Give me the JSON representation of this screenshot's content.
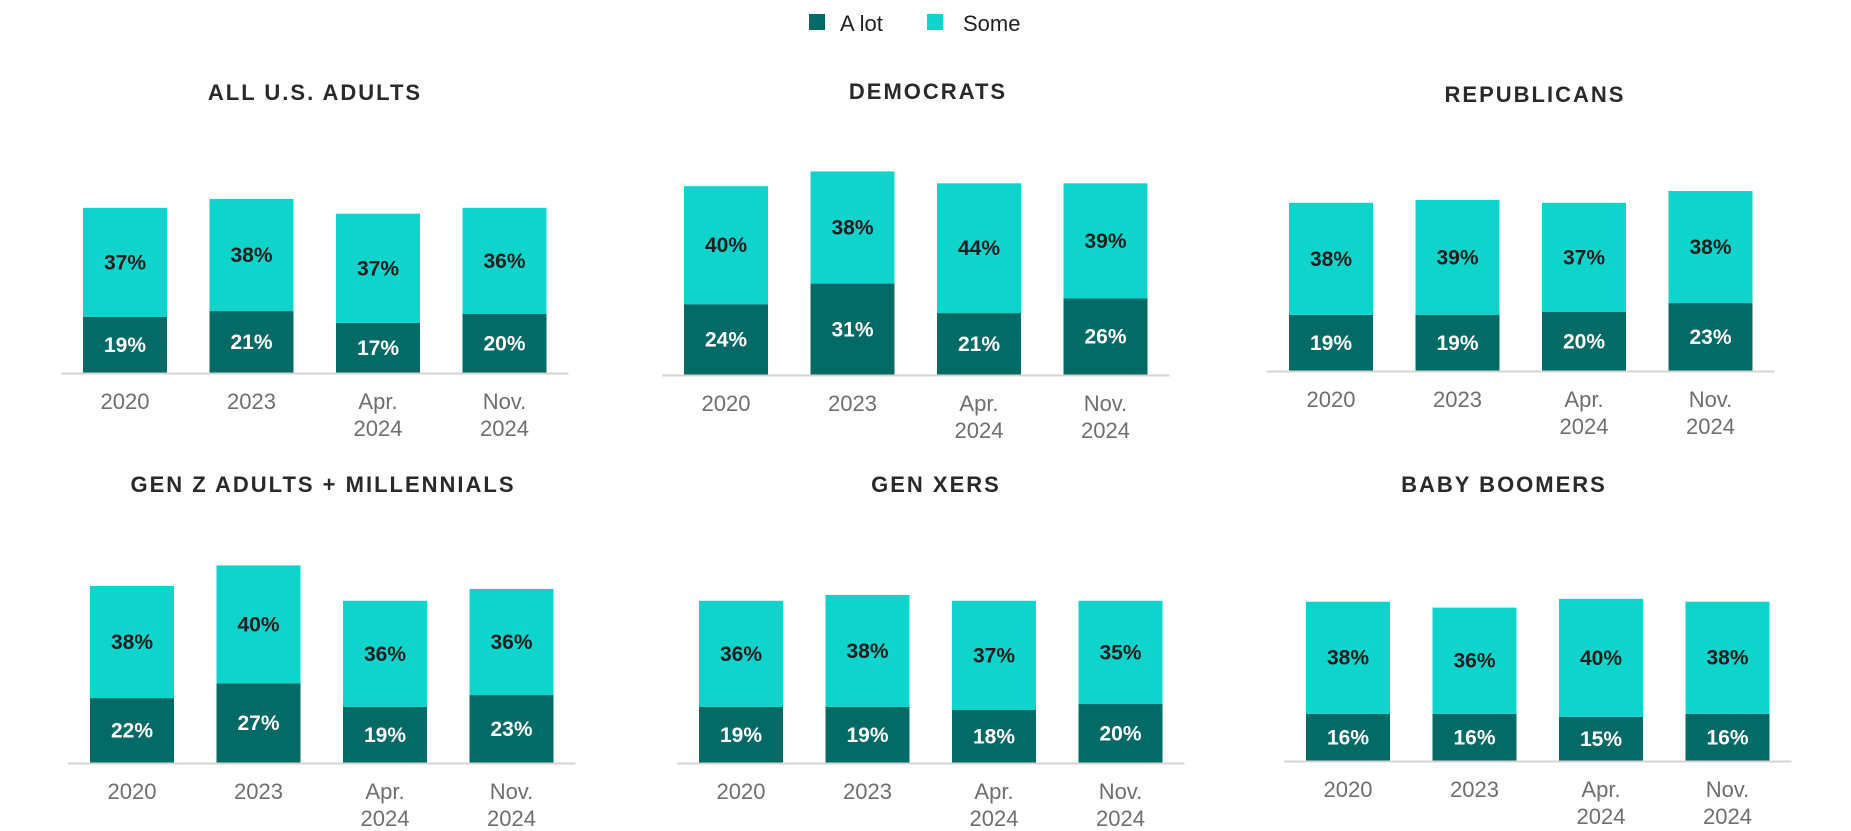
{
  "legend": [
    {
      "label": "A lot",
      "color": "#046A66"
    },
    {
      "label": "Some",
      "color": "#0FD4CC"
    }
  ],
  "chart_data": [
    {
      "type": "bar",
      "stacked": true,
      "title": "ALL U.S. ADULTS",
      "categories": [
        "2020",
        "2023",
        "Apr. 2024",
        "Nov. 2024"
      ],
      "series": [
        {
          "name": "A lot",
          "values": [
            19,
            21,
            17,
            20
          ],
          "labels": [
            "19%",
            "21%",
            "17%",
            "20%"
          ]
        },
        {
          "name": "Some",
          "values": [
            37,
            38,
            37,
            36
          ],
          "labels": [
            "37%",
            "38%",
            "37%",
            "36%"
          ]
        }
      ]
    },
    {
      "type": "bar",
      "stacked": true,
      "title": "DEMOCRATS",
      "categories": [
        "2020",
        "2023",
        "Apr. 2024",
        "Nov. 2024"
      ],
      "series": [
        {
          "name": "A lot",
          "values": [
            24,
            31,
            21,
            26
          ],
          "labels": [
            "24%",
            "31%",
            "21%",
            "26%"
          ]
        },
        {
          "name": "Some",
          "values": [
            40,
            38,
            44,
            39
          ],
          "labels": [
            "40%",
            "38%",
            "44%",
            "39%"
          ]
        }
      ]
    },
    {
      "type": "bar",
      "stacked": true,
      "title": "REPUBLICANS",
      "categories": [
        "2020",
        "2023",
        "Apr. 2024",
        "Nov. 2024"
      ],
      "series": [
        {
          "name": "A lot",
          "values": [
            19,
            19,
            20,
            23
          ],
          "labels": [
            "19%",
            "19%",
            "20%",
            "23%"
          ]
        },
        {
          "name": "Some",
          "values": [
            38,
            39,
            37,
            38
          ],
          "labels": [
            "38%",
            "39%",
            "37%",
            "38%"
          ]
        }
      ]
    },
    {
      "type": "bar",
      "stacked": true,
      "title": "GEN Z ADULTS + MILLENNIALS",
      "categories": [
        "2020",
        "2023",
        "Apr. 2024",
        "Nov. 2024"
      ],
      "series": [
        {
          "name": "A lot",
          "values": [
            22,
            27,
            19,
            23
          ],
          "labels": [
            "22%",
            "27%",
            "19%",
            "23%"
          ]
        },
        {
          "name": "Some",
          "values": [
            38,
            40,
            36,
            36
          ],
          "labels": [
            "38%",
            "40%",
            "36%",
            "36%"
          ]
        }
      ]
    },
    {
      "type": "bar",
      "stacked": true,
      "title": "GEN XERS",
      "categories": [
        "2020",
        "2023",
        "Apr. 2024",
        "Nov. 2024"
      ],
      "series": [
        {
          "name": "A lot",
          "values": [
            19,
            19,
            18,
            20
          ],
          "labels": [
            "19%",
            "19%",
            "18%",
            "20%"
          ]
        },
        {
          "name": "Some",
          "values": [
            36,
            38,
            37,
            35
          ],
          "labels": [
            "36%",
            "38%",
            "37%",
            "35%"
          ]
        }
      ]
    },
    {
      "type": "bar",
      "stacked": true,
      "title": "BABY BOOMERS",
      "categories": [
        "2020",
        "2023",
        "Apr. 2024",
        "Nov. 2024"
      ],
      "series": [
        {
          "name": "A lot",
          "values": [
            16,
            16,
            15,
            16
          ],
          "labels": [
            "16%",
            "16%",
            "15%",
            "16%"
          ]
        },
        {
          "name": "Some",
          "values": [
            38,
            36,
            40,
            38
          ],
          "labels": [
            "38%",
            "36%",
            "40%",
            "38%"
          ]
        }
      ]
    }
  ]
}
